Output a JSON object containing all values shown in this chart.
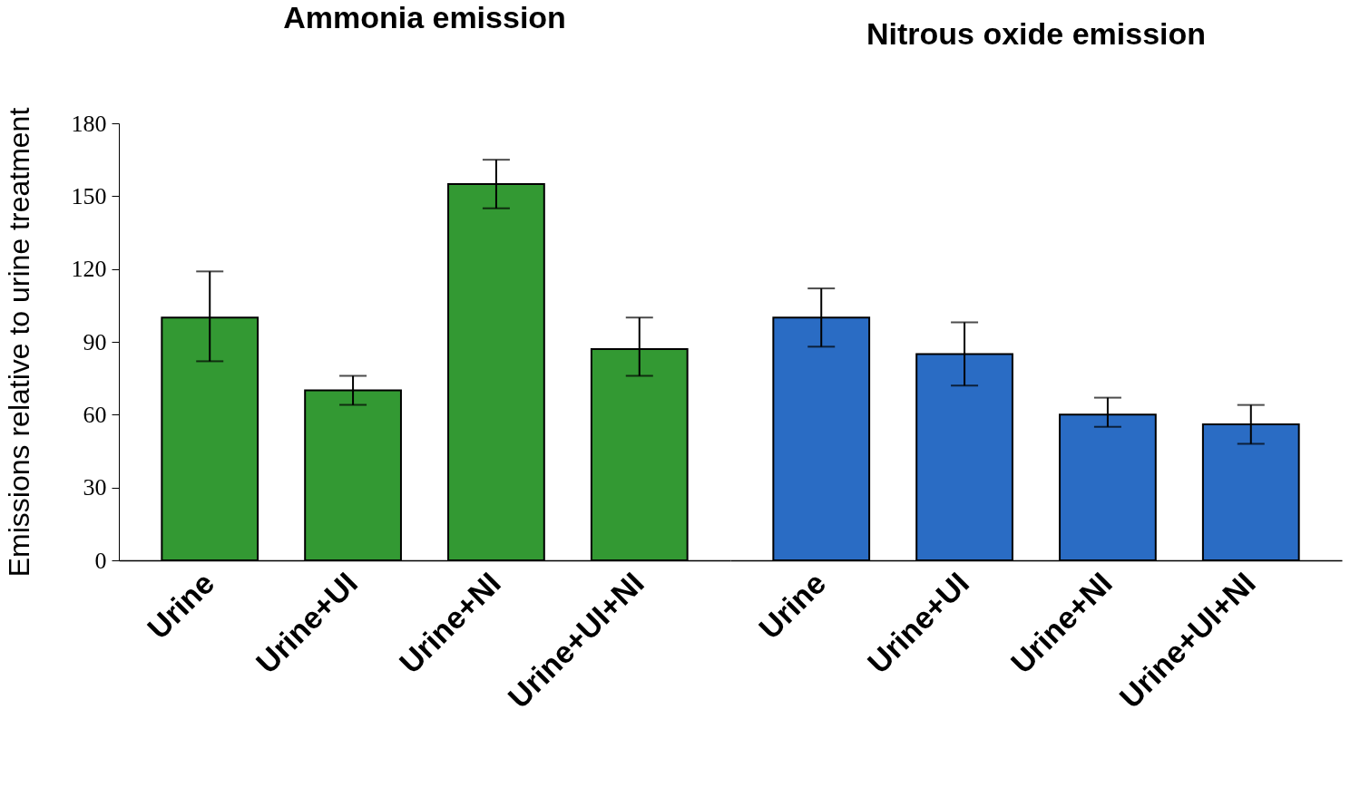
{
  "chart_data": [
    {
      "type": "bar",
      "title": "Ammonia emission",
      "ylabel": "Emissions relative to urine treatment",
      "categories": [
        "Urine",
        "Urine+UI",
        "Urine+NI",
        "Urine+UI+NI"
      ],
      "values": [
        100,
        70,
        155,
        87
      ],
      "errors": [
        [
          82,
          119
        ],
        [
          64,
          76
        ],
        [
          145,
          165
        ],
        [
          76,
          100
        ]
      ],
      "color": "#339933",
      "ylim": [
        0,
        180
      ],
      "yticks": [
        0,
        30,
        60,
        90,
        120,
        150,
        180
      ]
    },
    {
      "type": "bar",
      "title": "Nitrous oxide emission",
      "categories": [
        "Urine",
        "Urine+UI",
        "Urine+NI",
        "Urine+UI+NI"
      ],
      "values": [
        100,
        85,
        60,
        56
      ],
      "errors": [
        [
          88,
          112
        ],
        [
          72,
          98
        ],
        [
          55,
          67
        ],
        [
          48,
          64
        ]
      ],
      "color": "#2a6cc4",
      "ylim": [
        0,
        180
      ],
      "yticks": [
        0,
        30,
        60,
        90,
        120,
        150,
        180
      ],
      "tick_labels": "x"
    }
  ]
}
